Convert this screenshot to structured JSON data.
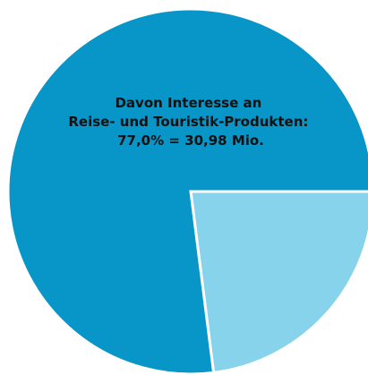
{
  "chart_data": {
    "type": "pie",
    "slices": [
      {
        "value": 77.0,
        "color": "#0895c7",
        "label_lines": [
          "Davon Interesse an",
          "Reise- und Touristik-Produkten:",
          "77,0% = 30,98 Mio."
        ]
      },
      {
        "value": 23.0,
        "color": "#88d3ec",
        "label_lines": []
      }
    ],
    "start_angle_deg": 90,
    "grid": false,
    "legend": "none"
  }
}
